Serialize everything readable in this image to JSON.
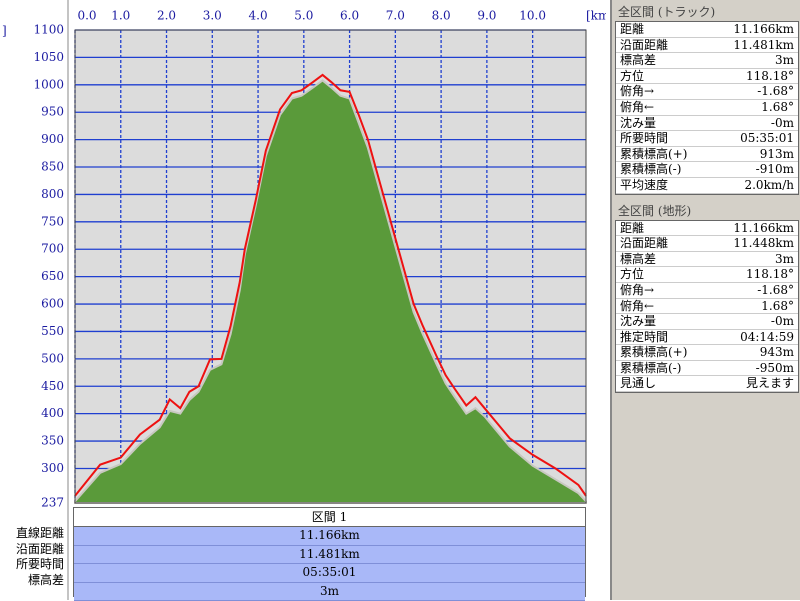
{
  "chart_data": {
    "type": "area-line",
    "ylabel": "]",
    "xlabel": "[km]",
    "x": [
      0,
      0.55,
      1.0,
      1.42,
      1.85,
      2.07,
      2.3,
      2.5,
      2.7,
      2.95,
      3.2,
      3.4,
      3.6,
      3.71,
      3.95,
      4.17,
      4.48,
      4.74,
      4.95,
      5.2,
      5.41,
      5.6,
      5.8,
      6.0,
      6.2,
      6.4,
      6.6,
      6.8,
      7.0,
      7.2,
      7.4,
      7.6,
      7.9,
      8.1,
      8.3,
      8.55,
      8.75,
      8.95,
      9.2,
      9.5,
      10.0,
      10.5,
      11.0,
      11.166
    ],
    "series": [
      {
        "name": "地形",
        "color": "#5a9a3a",
        "values": [
          240,
          292,
          308,
          345,
          375,
          405,
          400,
          425,
          440,
          480,
          490,
          545,
          625,
          690,
          780,
          870,
          945,
          975,
          980,
          995,
          1008,
          995,
          980,
          975,
          930,
          885,
          825,
          765,
          705,
          645,
          585,
          545,
          490,
          455,
          430,
          400,
          410,
          395,
          370,
          340,
          305,
          280,
          255,
          240
        ]
      },
      {
        "name": "トラック",
        "color": "#ee1111",
        "values": [
          250,
          307,
          320,
          362,
          389,
          426,
          410,
          440,
          450,
          499,
          500,
          560,
          640,
          700,
          790,
          880,
          955,
          985,
          990,
          1005,
          1018,
          1005,
          990,
          987,
          945,
          900,
          840,
          780,
          720,
          660,
          600,
          560,
          505,
          470,
          445,
          415,
          430,
          410,
          385,
          355,
          325,
          300,
          270,
          250
        ]
      }
    ],
    "xlim": [
      0,
      11.166
    ],
    "xticks": [
      {
        "value": 0,
        "label": "0.0"
      },
      {
        "value": 1,
        "label": "1.0"
      },
      {
        "value": 2,
        "label": "2.0"
      },
      {
        "value": 3,
        "label": "3.0"
      },
      {
        "value": 4,
        "label": "4.0"
      },
      {
        "value": 5,
        "label": "5.0"
      },
      {
        "value": 6,
        "label": "6.0"
      },
      {
        "value": 7,
        "label": "7.0"
      },
      {
        "value": 8,
        "label": "8.0"
      },
      {
        "value": 9,
        "label": "9.0"
      },
      {
        "value": 10,
        "label": "10.0"
      }
    ],
    "ylim": [
      237,
      1100
    ],
    "yticks": [
      237,
      300,
      350,
      400,
      450,
      500,
      550,
      600,
      650,
      700,
      750,
      800,
      850,
      900,
      950,
      1000,
      1050,
      1100
    ],
    "grid": true
  },
  "section": {
    "title": "区間 1",
    "labels": [
      "直線距離",
      "沿面距離",
      "所要時間",
      "標高差"
    ],
    "values": [
      "11.166km",
      "11.481km",
      "05:35:01",
      "3m"
    ]
  },
  "panels": [
    {
      "title": "全区間 (トラック)",
      "rows": [
        [
          "距離",
          "11.166km"
        ],
        [
          "沿面距離",
          "11.481km"
        ],
        [
          "標高差",
          "3m"
        ],
        [
          "方位",
          "118.18°"
        ],
        [
          "俯角→",
          "-1.68°"
        ],
        [
          "俯角←",
          "1.68°"
        ],
        [
          "沈み量",
          "-0m"
        ],
        [
          "所要時間",
          "05:35:01"
        ],
        [
          "累積標高(+)",
          "913m"
        ],
        [
          "累積標高(-)",
          "-910m"
        ],
        [
          "平均速度",
          "2.0km/h"
        ]
      ]
    },
    {
      "title": "全区間 (地形)",
      "rows": [
        [
          "距離",
          "11.166km"
        ],
        [
          "沿面距離",
          "11.448km"
        ],
        [
          "標高差",
          "3m"
        ],
        [
          "方位",
          "118.18°"
        ],
        [
          "俯角→",
          "-1.68°"
        ],
        [
          "俯角←",
          "1.68°"
        ],
        [
          "沈み量",
          "-0m"
        ],
        [
          "推定時間",
          "04:14:59"
        ],
        [
          "累積標高(+)",
          "943m"
        ],
        [
          "累積標高(-)",
          "-950m"
        ],
        [
          "見通し",
          "見えます"
        ]
      ]
    }
  ]
}
